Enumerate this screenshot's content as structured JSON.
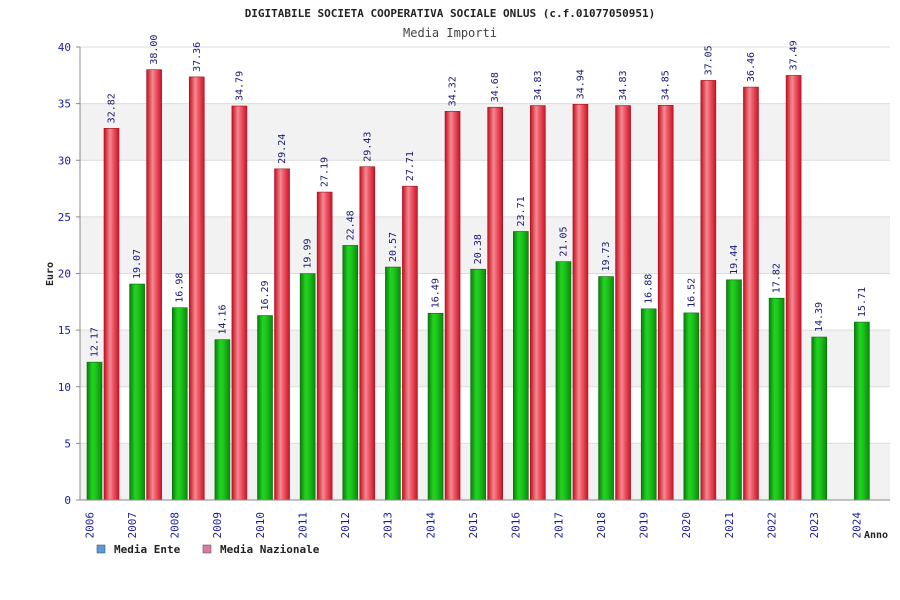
{
  "chart_data": {
    "type": "bar",
    "title": "DIGITABILE SOCIETA COOPERATIVA SOCIALE ONLUS (c.f.01077050951)",
    "subtitle": "Media Importi",
    "ylabel": "Euro",
    "xlabel": "Anno",
    "ylim": [
      0,
      40
    ],
    "yticks": [
      0,
      5,
      10,
      15,
      20,
      25,
      30,
      35,
      40
    ],
    "grid": true,
    "legend_position": "bottom-left",
    "categories": [
      "2006",
      "2007",
      "2008",
      "2009",
      "2010",
      "2011",
      "2012",
      "2013",
      "2014",
      "2015",
      "2016",
      "2017",
      "2018",
      "2019",
      "2020",
      "2021",
      "2022",
      "2023",
      "2024"
    ],
    "series": [
      {
        "name": "Media Ente",
        "color": "#14b414",
        "legend_color": "#5b9bd5",
        "values": [
          12.17,
          19.07,
          16.98,
          14.16,
          16.29,
          19.99,
          22.48,
          20.57,
          16.49,
          20.38,
          23.71,
          21.05,
          19.73,
          16.88,
          16.52,
          19.44,
          17.82,
          14.39,
          15.71
        ],
        "labels": [
          "12.17",
          "19.07",
          "16.98",
          "14.16",
          "16.29",
          "19.99",
          "22.48",
          "20.57",
          "16.49",
          "20.38",
          "23.71",
          "21.05",
          "19.73",
          "16.88",
          "16.52",
          "19.44",
          "17.82",
          "14.39",
          "15.71"
        ]
      },
      {
        "name": "Media Nazionale",
        "color": "#e8283a",
        "legend_color": "#d97ba3",
        "values": [
          32.82,
          38.0,
          37.36,
          34.79,
          29.24,
          27.19,
          29.43,
          27.71,
          34.32,
          34.68,
          34.83,
          34.94,
          34.83,
          34.85,
          37.05,
          36.46,
          37.49,
          null,
          null
        ],
        "labels": [
          "32.82",
          "38.00",
          "37.36",
          "34.79",
          "29.24",
          "27.19",
          "29.43",
          "27.71",
          "34.32",
          "34.68",
          "34.83",
          "34.94",
          "34.83",
          "34.85",
          "37.05",
          "36.46",
          "37.49",
          null,
          null
        ]
      }
    ]
  }
}
